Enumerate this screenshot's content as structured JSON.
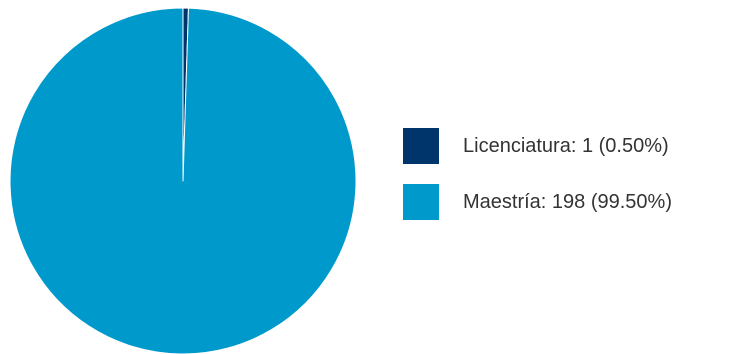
{
  "chart_data": {
    "type": "pie",
    "slices": [
      {
        "label": "Licenciatura",
        "value": 1,
        "percent": "0.50%",
        "color": "#00356b"
      },
      {
        "label": "Maestría",
        "value": 198,
        "percent": "99.50%",
        "color": "#0099cc"
      }
    ],
    "legend": {
      "placement": "right",
      "entries": [
        {
          "text": "Licenciatura: 1 (0.50%)",
          "color": "#00356b"
        },
        {
          "text": "Maestría: 198 (99.50%)",
          "color": "#0099cc"
        }
      ]
    }
  }
}
